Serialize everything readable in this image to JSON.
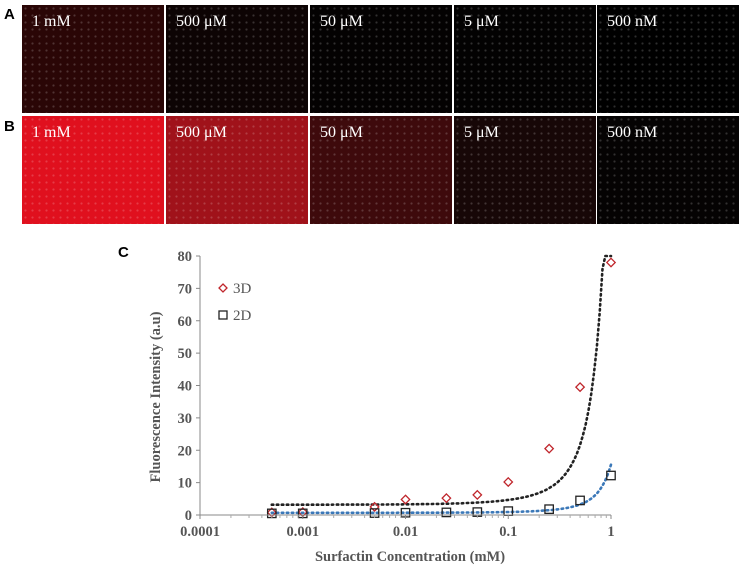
{
  "panels": {
    "row_a_label": "A",
    "row_b_label": "B",
    "row_a": [
      {
        "label": "1 mM",
        "color": "#2a0606"
      },
      {
        "label": "500 μM",
        "color": "#0d0404"
      },
      {
        "label": "50 μM",
        "color": "#040202"
      },
      {
        "label": "5 μM",
        "color": "#030202"
      },
      {
        "label": "500 nM",
        "color": "#000000"
      }
    ],
    "row_b": [
      {
        "label": "1 mM",
        "color": "#e0101e"
      },
      {
        "label": "500 μM",
        "color": "#a0121a"
      },
      {
        "label": "50 μM",
        "color": "#3e0a0c"
      },
      {
        "label": "5 μM",
        "color": "#170707"
      },
      {
        "label": "500 nM",
        "color": "#050303"
      }
    ]
  },
  "chart_label": "C",
  "chart_data": {
    "type": "scatter",
    "xscale": "log",
    "xlabel": "Surfactin Concentration (mM)",
    "ylabel": "Fluorescence Intensity (a.u)",
    "xlim": [
      0.0001,
      1
    ],
    "ylim": [
      0,
      80
    ],
    "xticks": [
      "0.0001",
      "0.001",
      "0.01",
      "0.1",
      "1"
    ],
    "yticks": [
      "0",
      "10",
      "20",
      "30",
      "40",
      "50",
      "60",
      "70",
      "80"
    ],
    "series": [
      {
        "name": "3D",
        "marker": "diamond",
        "color": "#c0262c",
        "x": [
          0.0005,
          0.001,
          0.005,
          0.01,
          0.025,
          0.05,
          0.1,
          0.25,
          0.5,
          1
        ],
        "y": [
          0.8,
          0.9,
          2.5,
          4.8,
          5.2,
          6.2,
          10.2,
          20.5,
          39.5,
          78
        ]
      },
      {
        "name": "2D",
        "marker": "square",
        "color": "#222222",
        "x": [
          0.0005,
          0.001,
          0.005,
          0.01,
          0.025,
          0.05,
          0.1,
          0.25,
          0.5,
          1
        ],
        "y": [
          0.5,
          0.5,
          0.6,
          0.7,
          0.8,
          0.9,
          1.2,
          1.8,
          4.5,
          12.2
        ]
      }
    ]
  }
}
